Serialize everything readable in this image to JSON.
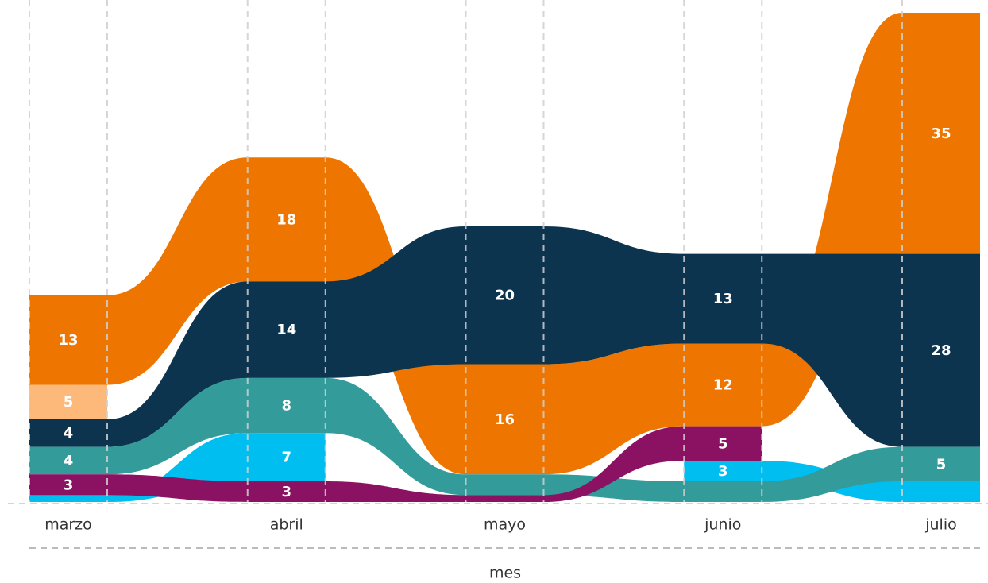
{
  "chart_data": {
    "type": "ribbon",
    "x_label": "mes",
    "categories": [
      "marzo",
      "abril",
      "mayo",
      "junio",
      "julio"
    ],
    "series": [
      {
        "color": "#ee7600",
        "values": [
          13,
          18,
          16,
          12,
          35
        ],
        "value_labels": [
          "13",
          "18",
          "16",
          "12",
          "35"
        ]
      },
      {
        "color": "#fdb97a",
        "values": [
          5,
          null,
          null,
          null,
          null
        ],
        "value_labels": [
          "5",
          null,
          null,
          null,
          null
        ]
      },
      {
        "color": "#0d344f",
        "values": [
          4,
          14,
          20,
          13,
          28
        ],
        "value_labels": [
          "4",
          "14",
          "20",
          "13",
          "28"
        ]
      },
      {
        "color": "#00bff0",
        "values": [
          1,
          7,
          null,
          3,
          3
        ],
        "value_labels": [
          null,
          "7",
          null,
          "3",
          null
        ]
      },
      {
        "color": "#339c9b",
        "values": [
          4,
          8,
          3,
          3,
          5
        ],
        "value_labels": [
          "4",
          "8",
          null,
          null,
          "5"
        ]
      },
      {
        "color": "#8b1262",
        "values": [
          3,
          3,
          1,
          5,
          null
        ],
        "value_labels": [
          "3",
          "3",
          null,
          "5",
          null
        ]
      }
    ]
  }
}
